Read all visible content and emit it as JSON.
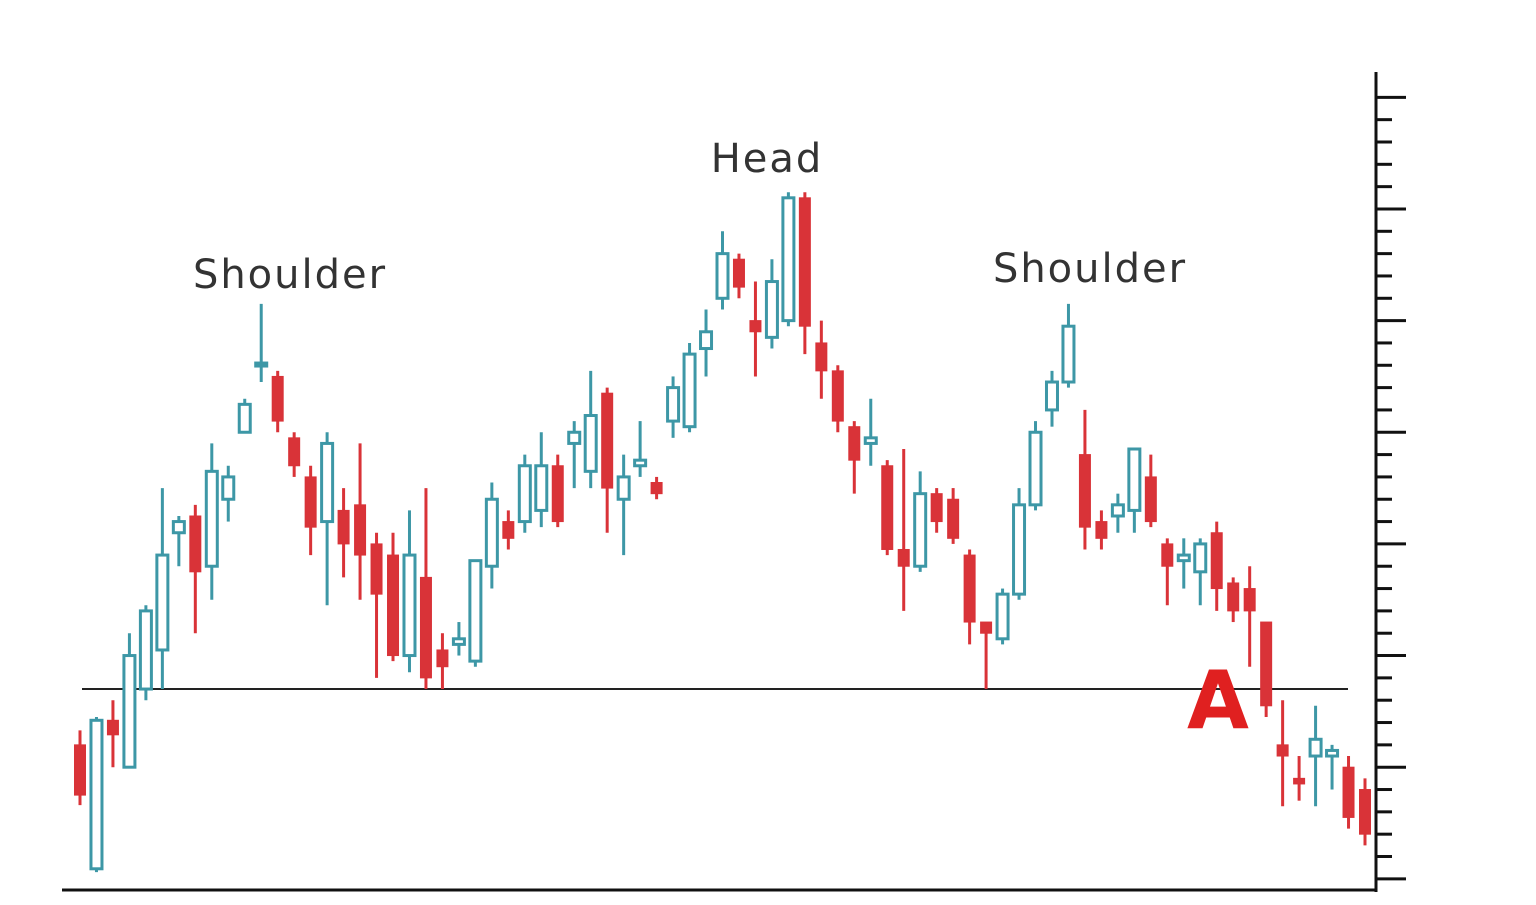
{
  "chart_data": {
    "type": "candlestick",
    "ylim": [
      -1,
      72
    ],
    "yticks": [
      0,
      2,
      4,
      6,
      8,
      10,
      12,
      14,
      16,
      18,
      20,
      22,
      24,
      26,
      28,
      30,
      32,
      34,
      36,
      38,
      40,
      42,
      44,
      46,
      48,
      50,
      52,
      54,
      56,
      58,
      60,
      62,
      64,
      66,
      68,
      70
    ],
    "up_color": "#3d97a6",
    "down_color": "#d93338",
    "neckline": 17,
    "annotations": [
      "Shoulder",
      "Head",
      "Shoulder",
      "A"
    ],
    "open": [
      12,
      0.9,
      14.2,
      10,
      17,
      20.5,
      31,
      32.5,
      28,
      34,
      40,
      46,
      45,
      39.5,
      36,
      32,
      33,
      33.5,
      30,
      29,
      20,
      27,
      20.5,
      21,
      19.5,
      28,
      32,
      32,
      33,
      37,
      39,
      36.5,
      43.5,
      34,
      37,
      35.5,
      41,
      40.5,
      47.5,
      52,
      55.5,
      50,
      48.5,
      50,
      61,
      48,
      45.5,
      40.5,
      39,
      37,
      29.5,
      28,
      34.5,
      34,
      29,
      23,
      21.5,
      25.5,
      33.5,
      42,
      44.5,
      38,
      32,
      32.5,
      33,
      36,
      30,
      28.5,
      27.5,
      31,
      26.5,
      26,
      23,
      12,
      9,
      11,
      11,
      10,
      8
    ],
    "high": [
      13.3,
      14.5,
      16,
      22,
      24.5,
      35,
      32.5,
      33.5,
      39,
      37,
      43,
      51.5,
      45.5,
      40,
      37,
      40,
      35,
      39,
      31,
      31,
      33,
      35,
      22,
      23,
      28.5,
      35.5,
      33,
      38,
      40,
      38,
      41,
      45.5,
      44,
      38,
      41,
      36,
      45,
      48,
      51,
      58,
      56,
      53.5,
      55.5,
      61.5,
      61.5,
      50,
      46,
      41,
      43,
      37.5,
      38.5,
      36.5,
      35,
      35,
      29.5,
      23,
      26,
      35,
      41,
      45.5,
      51.5,
      42,
      33,
      34.5,
      38.5,
      38,
      30.5,
      30.5,
      30.5,
      32,
      27,
      28,
      23,
      16,
      11,
      15.5,
      12,
      11,
      9
    ],
    "low": [
      6.6,
      0.6,
      10,
      10,
      16,
      17,
      28,
      22,
      25,
      32,
      40,
      44.5,
      40,
      36,
      29,
      24.5,
      27,
      25,
      18,
      19.5,
      18.5,
      17,
      17,
      20,
      19,
      26,
      29.5,
      31,
      31.5,
      31.5,
      35,
      35,
      31,
      29,
      36,
      34,
      39.5,
      40,
      45,
      51,
      52,
      45,
      47.5,
      49.5,
      47,
      43,
      40,
      34.5,
      37,
      29,
      24,
      27.5,
      31,
      30,
      21,
      17,
      21,
      25,
      33,
      40.5,
      44,
      29.5,
      29.5,
      31,
      31,
      31.5,
      24.5,
      26,
      24.5,
      24,
      23,
      19,
      14.5,
      6.5,
      7,
      6.5,
      8,
      4.5,
      3
    ],
    "close": [
      7.5,
      14.2,
      12.9,
      20,
      24,
      29,
      32,
      27.5,
      36.5,
      36,
      42.5,
      46.2,
      41,
      37,
      31.5,
      39,
      30,
      29,
      25.5,
      20,
      29,
      18,
      19,
      21.5,
      28.5,
      34,
      30.5,
      37,
      37,
      32,
      40,
      41.5,
      35,
      36,
      37.5,
      34.5,
      44,
      47,
      49,
      56,
      53,
      49,
      53.5,
      61,
      49.5,
      45.5,
      41,
      37.5,
      39.5,
      29.5,
      28,
      34.5,
      32,
      30.5,
      23,
      22,
      25.5,
      33.5,
      40,
      44.5,
      49.5,
      31.5,
      30.5,
      33.5,
      38.5,
      32,
      28,
      29,
      30,
      26,
      24,
      24,
      15.5,
      11,
      8.5,
      12.5,
      11.5,
      5.5,
      4
    ]
  }
}
